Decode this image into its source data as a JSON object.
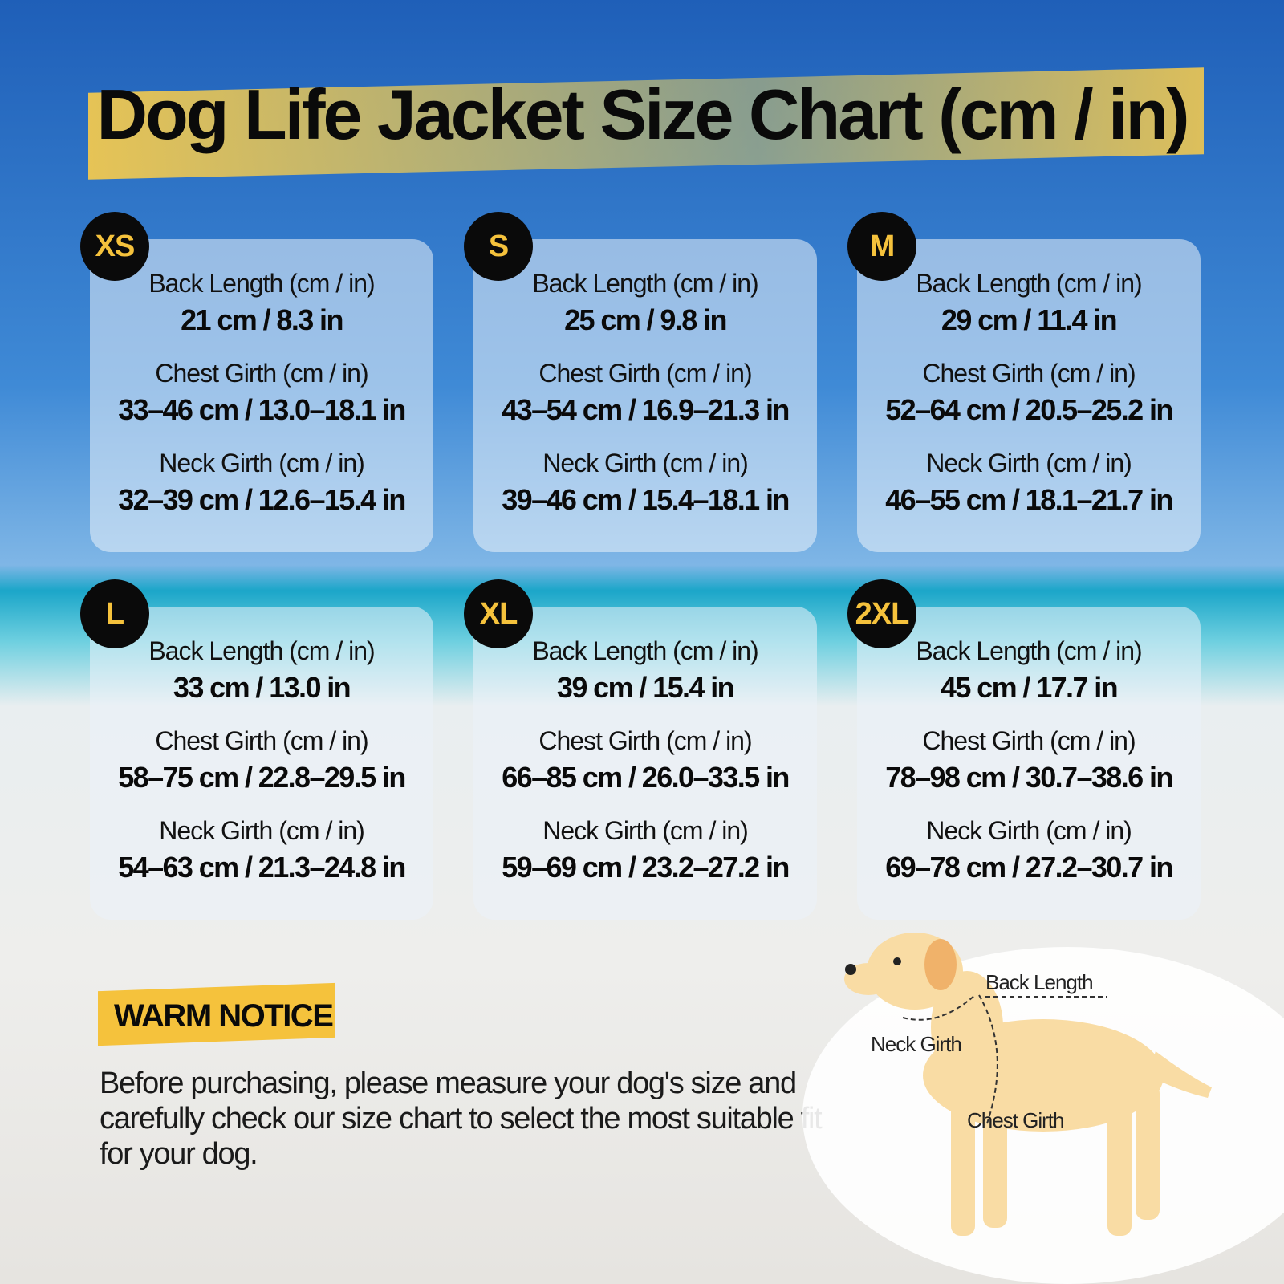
{
  "header": {
    "title": "Dog Life Jacket Size Chart (cm / in)"
  },
  "cards": [
    {
      "size": "XS",
      "rows": [
        {
          "label": "Back Length (cm / in)",
          "value": "21 cm / 8.3 in"
        },
        {
          "label": "Chest Girth (cm / in)",
          "value": "33–46 cm / 13.0–18.1 in"
        },
        {
          "label": "Neck Girth (cm / in)",
          "value": "32–39 cm / 12.6–15.4 in"
        }
      ]
    },
    {
      "size": "S",
      "rows": [
        {
          "label": "Back Length (cm / in)",
          "value": "25 cm / 9.8 in"
        },
        {
          "label": "Chest Girth (cm / in)",
          "value": "43–54 cm / 16.9–21.3 in"
        },
        {
          "label": "Neck Girth (cm / in)",
          "value": "39–46 cm / 15.4–18.1 in"
        }
      ]
    },
    {
      "size": "M",
      "rows": [
        {
          "label": "Back Length (cm / in)",
          "value": "29 cm / 11.4 in"
        },
        {
          "label": "Chest Girth (cm / in)",
          "value": "52–64 cm / 20.5–25.2 in"
        },
        {
          "label": "Neck Girth (cm / in)",
          "value": "46–55 cm / 18.1–21.7 in"
        }
      ]
    },
    {
      "size": "L",
      "rows": [
        {
          "label": "Back Length (cm / in)",
          "value": "33 cm / 13.0 in"
        },
        {
          "label": "Chest Girth (cm / in)",
          "value": "58–75 cm / 22.8–29.5 in"
        },
        {
          "label": "Neck Girth (cm / in)",
          "value": "54–63 cm / 21.3–24.8 in"
        }
      ]
    },
    {
      "size": "XL",
      "rows": [
        {
          "label": "Back Length (cm / in)",
          "value": "39 cm / 15.4 in"
        },
        {
          "label": "Chest Girth (cm / in)",
          "value": "66–85 cm / 26.0–33.5 in"
        },
        {
          "label": "Neck Girth (cm / in)",
          "value": "59–69 cm / 23.2–27.2 in"
        }
      ]
    },
    {
      "size": "2XL",
      "rows": [
        {
          "label": "Back Length (cm / in)",
          "value": "45 cm / 17.7 in"
        },
        {
          "label": "Chest Girth (cm / in)",
          "value": "78–98 cm / 30.7–38.6 in"
        },
        {
          "label": "Neck Girth (cm / in)",
          "value": "69–78 cm / 27.2–30.7 in"
        }
      ]
    }
  ],
  "notice": {
    "title": "WARM NOTICE",
    "text": "Before purchasing, please measure your dog's size and carefully check our size chart to select the most suitable fit for your dog."
  },
  "diagram": {
    "back_length": "Back Length",
    "neck_girth": "Neck Girth",
    "chest_girth": "Chest Girth"
  }
}
